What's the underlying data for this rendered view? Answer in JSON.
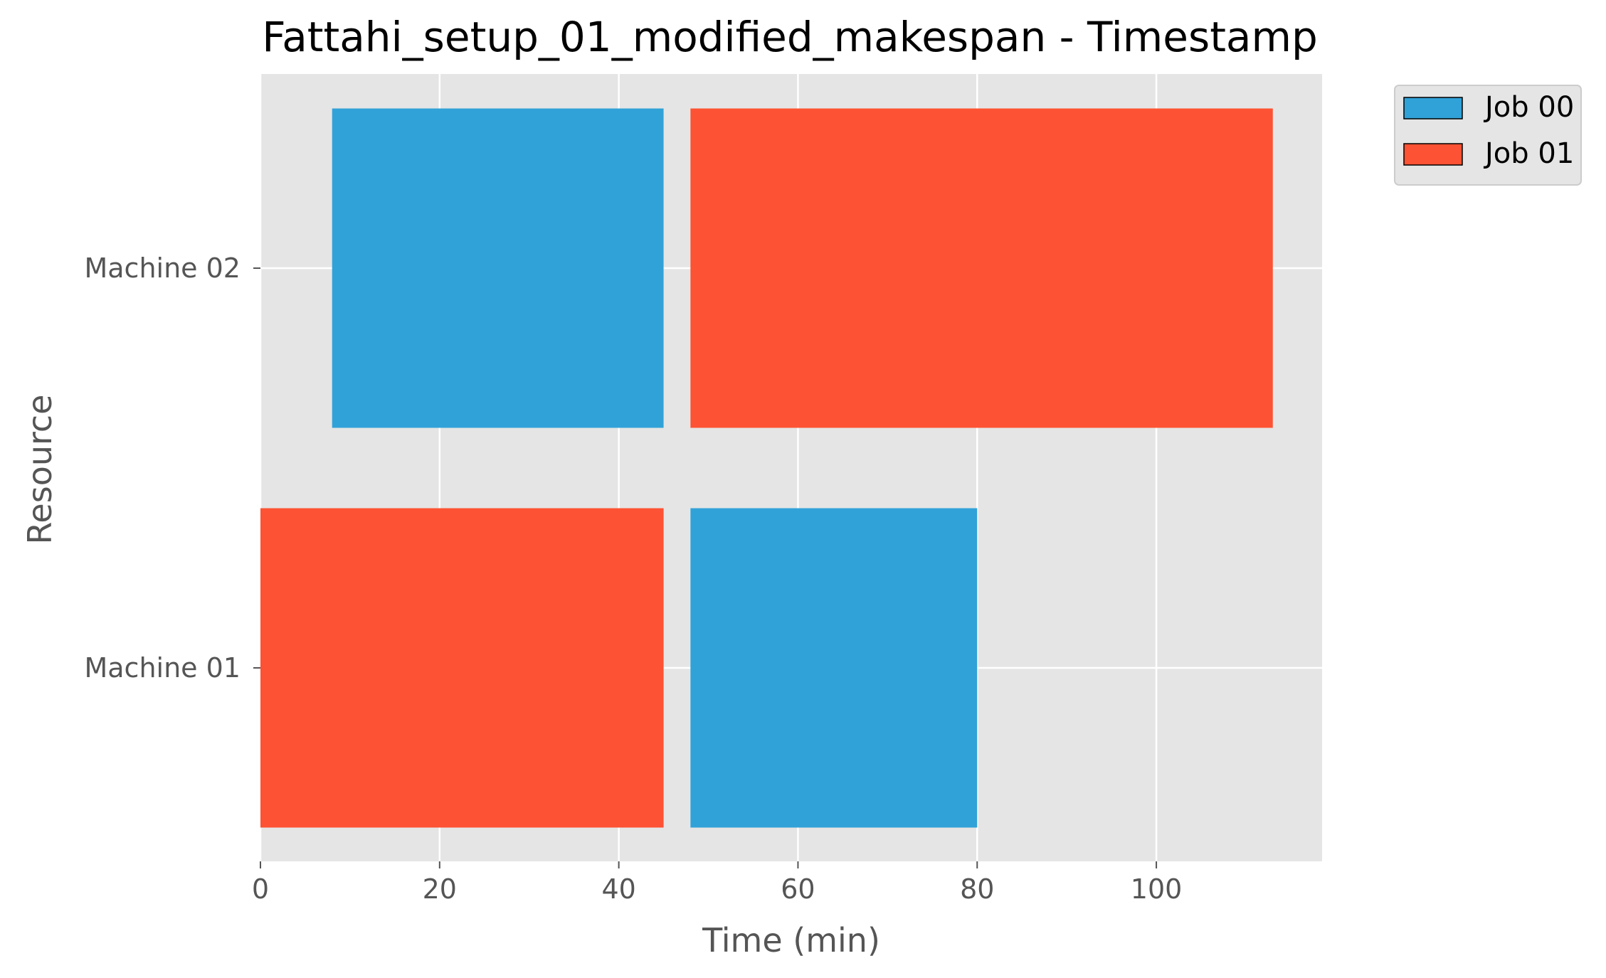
{
  "chart_data": {
    "type": "gantt",
    "title": "Fattahi_setup_01_modified_makespan - Timestamp",
    "xlabel": "Time (min)",
    "ylabel": "Resource",
    "xlim": [
      0,
      118.5
    ],
    "xticks": [
      "0",
      "20",
      "40",
      "60",
      "80",
      "100"
    ],
    "xtick_values": [
      0,
      20,
      40,
      60,
      80,
      100
    ],
    "categories": [
      "Machine 01",
      "Machine 02"
    ],
    "grid": true,
    "legend_position": "outside-top-right",
    "colors": {
      "plot_background": "#e5e5e5",
      "grid": "#ffffff"
    },
    "series": [
      {
        "name": "Job 00",
        "color": "#31a2d8",
        "tasks": [
          {
            "resource": "Machine 02",
            "start": 8,
            "end": 45
          },
          {
            "resource": "Machine 01",
            "start": 48,
            "end": 80
          }
        ]
      },
      {
        "name": "Job 01",
        "color": "#fd5233",
        "tasks": [
          {
            "resource": "Machine 01",
            "start": 0,
            "end": 45
          },
          {
            "resource": "Machine 02",
            "start": 48,
            "end": 113
          }
        ]
      }
    ]
  }
}
